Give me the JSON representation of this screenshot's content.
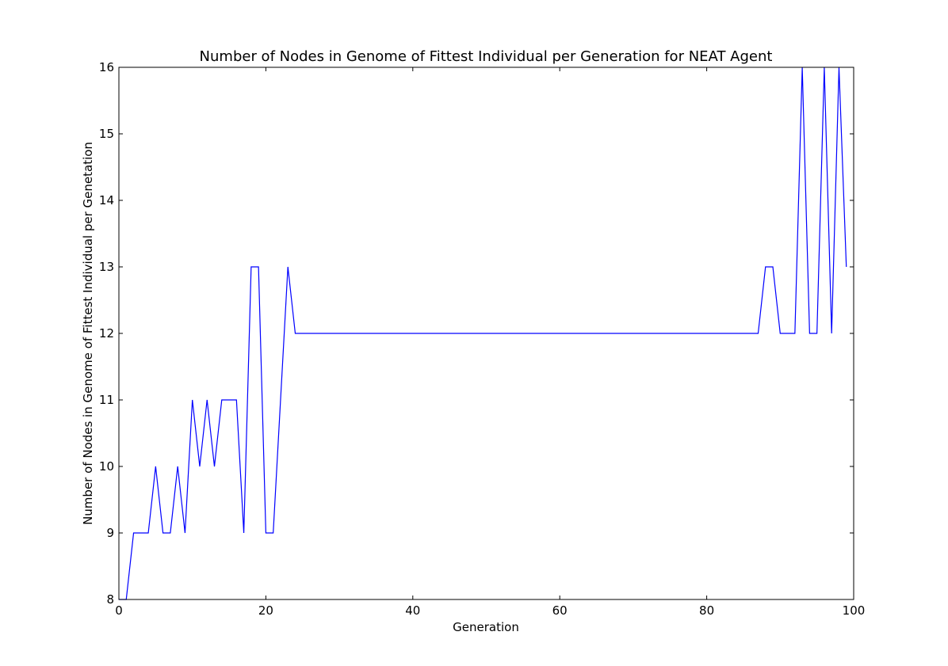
{
  "chart_data": {
    "type": "line",
    "title": "Number of Nodes in Genome of Fittest Individual per Generation for NEAT Agent",
    "xlabel": "Generation",
    "ylabel": "Number of Nodes in Genome of Fittest Individual per Genetation",
    "xlim": [
      0,
      100
    ],
    "ylim": [
      8,
      16
    ],
    "xticks": [
      0,
      20,
      40,
      60,
      80,
      100
    ],
    "yticks": [
      8,
      9,
      10,
      11,
      12,
      13,
      14,
      15,
      16
    ],
    "grid": false,
    "series": [
      {
        "color": "#0000ff",
        "x": [
          0,
          1,
          2,
          3,
          4,
          5,
          6,
          7,
          8,
          9,
          10,
          11,
          12,
          13,
          14,
          15,
          16,
          17,
          18,
          19,
          20,
          21,
          22,
          23,
          24,
          25,
          26,
          27,
          28,
          29,
          30,
          31,
          32,
          33,
          34,
          35,
          36,
          37,
          38,
          39,
          40,
          41,
          42,
          43,
          44,
          45,
          46,
          47,
          48,
          49,
          50,
          51,
          52,
          53,
          54,
          55,
          56,
          57,
          58,
          59,
          60,
          61,
          62,
          63,
          64,
          65,
          66,
          67,
          68,
          69,
          70,
          71,
          72,
          73,
          74,
          75,
          76,
          77,
          78,
          79,
          80,
          81,
          82,
          83,
          84,
          85,
          86,
          87,
          88,
          89,
          90,
          91,
          92,
          93,
          94,
          95,
          96,
          97,
          98,
          99
        ],
        "y": [
          8,
          8,
          9,
          9,
          9,
          10,
          9,
          9,
          10,
          9,
          11,
          10,
          11,
          10,
          11,
          11,
          11,
          9,
          13,
          13,
          9,
          9,
          11,
          13,
          12,
          12,
          12,
          12,
          12,
          12,
          12,
          12,
          12,
          12,
          12,
          12,
          12,
          12,
          12,
          12,
          12,
          12,
          12,
          12,
          12,
          12,
          12,
          12,
          12,
          12,
          12,
          12,
          12,
          12,
          12,
          12,
          12,
          12,
          12,
          12,
          12,
          12,
          12,
          12,
          12,
          12,
          12,
          12,
          12,
          12,
          12,
          12,
          12,
          12,
          12,
          12,
          12,
          12,
          12,
          12,
          12,
          12,
          12,
          12,
          12,
          12,
          12,
          12,
          13,
          13,
          12,
          12,
          12,
          16,
          12,
          12,
          16,
          12,
          16,
          13
        ]
      }
    ]
  }
}
